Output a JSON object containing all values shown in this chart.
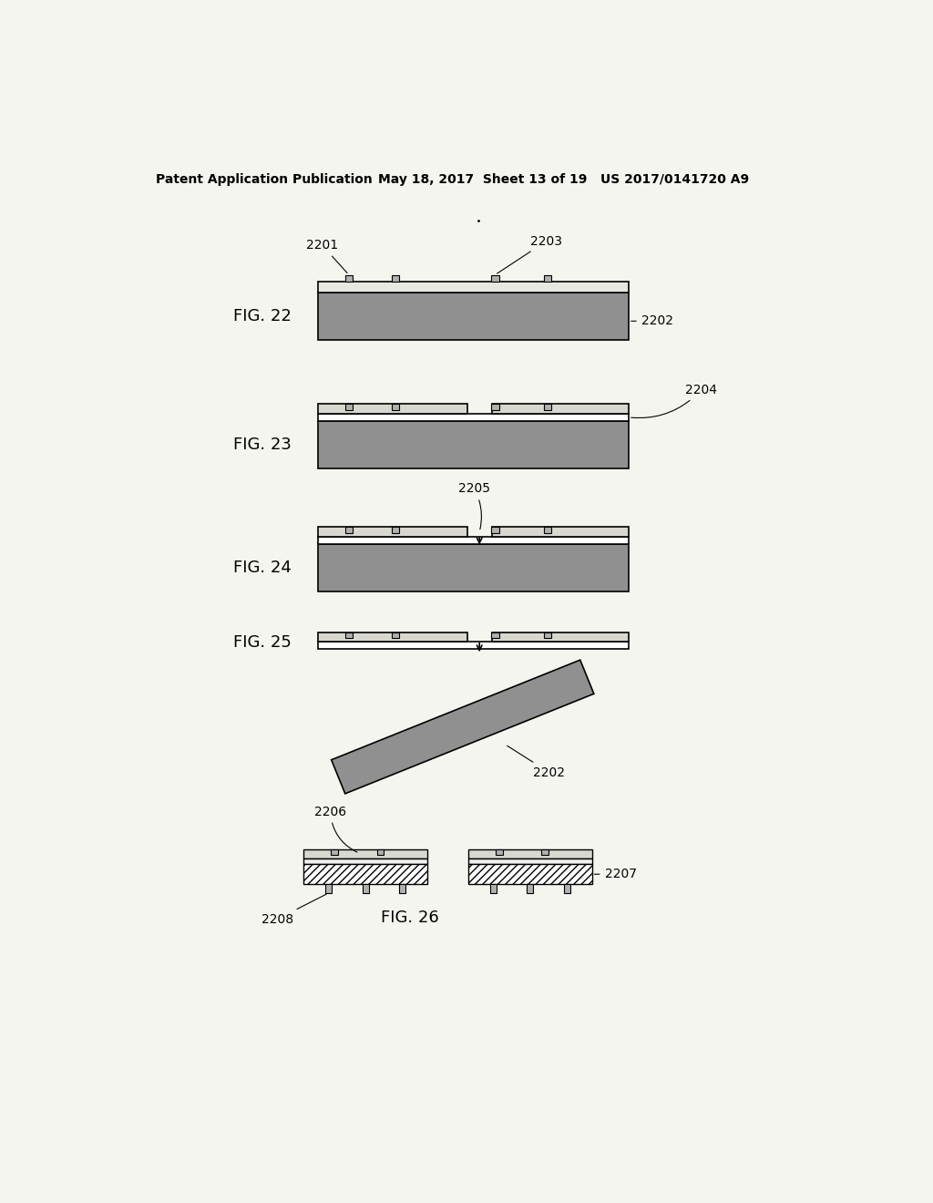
{
  "header_left": "Patent Application Publication",
  "header_mid": "May 18, 2017  Sheet 13 of 19",
  "header_right": "US 2017/0141720 A9",
  "bg_color": "#f5f5f0",
  "dark_gray": "#909090",
  "medium_gray": "#b0b0b0",
  "light_gray": "#d8d8d0",
  "white_layer": "#e8e8e0",
  "black": "#000000",
  "fig_label_size": 13,
  "annot_size": 10,
  "header_size": 10
}
